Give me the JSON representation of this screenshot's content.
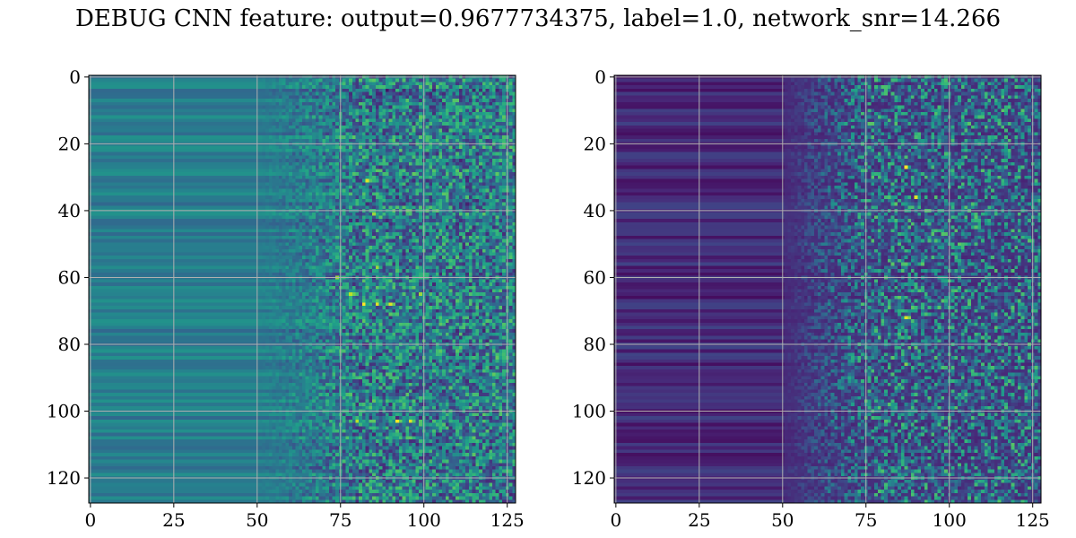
{
  "figure": {
    "title": "DEBUG CNN feature: output=0.9677734375, label=1.0, network_snr=14.266"
  },
  "colormap": {
    "name": "viridis",
    "stops": [
      "#440154",
      "#482878",
      "#3e4989",
      "#31688e",
      "#26828e",
      "#1f9e89",
      "#35b779",
      "#6ece58",
      "#b5de2b",
      "#fde725"
    ]
  },
  "chart_data": [
    {
      "type": "heatmap",
      "title": "",
      "xlabel": "",
      "ylabel": "",
      "rows": 128,
      "cols": 128,
      "xlim": [
        0,
        128
      ],
      "ylim": [
        128,
        0
      ],
      "xticks": [
        0,
        25,
        50,
        75,
        100,
        125
      ],
      "yticks": [
        0,
        20,
        40,
        60,
        80,
        100,
        120
      ],
      "grid": true,
      "description_of_values": "columns 0-50 smooth horizontal bands (teal-blue); columns 50-75 banded with increasing noise; columns 75-128 noisy with bright yellow spots",
      "base_level": 0.42,
      "noise_start_col": 55,
      "hotspots": [
        {
          "row": 31,
          "col": 83,
          "value": 0.95
        },
        {
          "row": 41,
          "col": 85,
          "value": 0.85
        },
        {
          "row": 60,
          "col": 74,
          "value": 0.85
        },
        {
          "row": 65,
          "col": 78,
          "value": 0.9
        },
        {
          "row": 65,
          "col": 99,
          "value": 0.85
        },
        {
          "row": 68,
          "col": 82,
          "value": 1.0
        },
        {
          "row": 68,
          "col": 86,
          "value": 0.95
        },
        {
          "row": 68,
          "col": 90,
          "value": 0.95
        },
        {
          "row": 103,
          "col": 80,
          "value": 0.9
        },
        {
          "row": 103,
          "col": 92,
          "value": 1.0
        },
        {
          "row": 103,
          "col": 96,
          "value": 0.95
        },
        {
          "row": 4,
          "col": 89,
          "value": 0.05
        },
        {
          "row": 57,
          "col": 86,
          "value": 0.85
        }
      ]
    },
    {
      "type": "heatmap",
      "title": "",
      "xlabel": "",
      "ylabel": "",
      "rows": 128,
      "cols": 128,
      "xlim": [
        0,
        128
      ],
      "ylim": [
        128,
        0
      ],
      "xticks": [
        0,
        25,
        50,
        75,
        100,
        125
      ],
      "yticks": [
        0,
        20,
        40,
        60,
        80,
        100,
        120
      ],
      "grid": true,
      "description_of_values": "mostly dark purple; columns 0-50 faint horizontal bands; columns 50-128 sparse noisy teal/green pixels with a few yellow spots",
      "base_level": 0.12,
      "noise_start_col": 50,
      "hotspots": [
        {
          "row": 27,
          "col": 87,
          "value": 1.0
        },
        {
          "row": 36,
          "col": 90,
          "value": 0.95
        },
        {
          "row": 72,
          "col": 87,
          "value": 0.95
        },
        {
          "row": 86,
          "col": 87,
          "value": 0.8
        },
        {
          "row": 66,
          "col": 85,
          "value": 0.75
        },
        {
          "row": 43,
          "col": 84,
          "value": 0.7
        },
        {
          "row": 104,
          "col": 86,
          "value": 0.7
        }
      ]
    }
  ]
}
